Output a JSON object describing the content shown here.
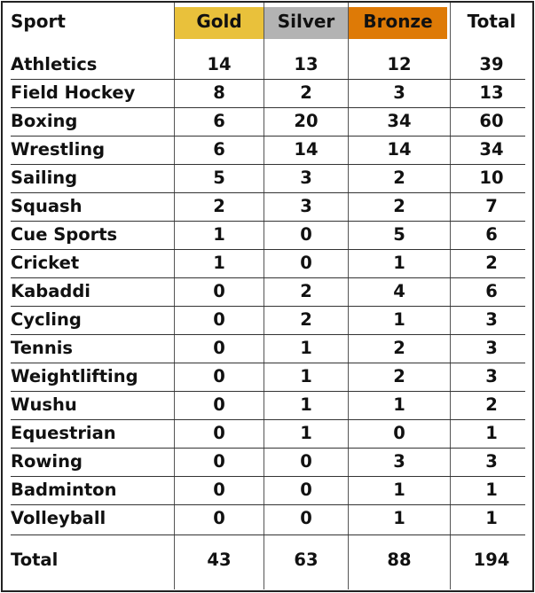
{
  "colors": {
    "gold": "#e9c13b",
    "silver": "#b3b3b3",
    "bronze": "#de7a06"
  },
  "header": {
    "sport": "Sport",
    "gold": "Gold",
    "silver": "Silver",
    "bronze": "Bronze",
    "total": "Total"
  },
  "rows": [
    {
      "sport": "Athletics",
      "gold": "14",
      "silver": "13",
      "bronze": "12",
      "total": "39"
    },
    {
      "sport": "Field Hockey",
      "gold": "8",
      "silver": "2",
      "bronze": "3",
      "total": "13"
    },
    {
      "sport": "Boxing",
      "gold": "6",
      "silver": "20",
      "bronze": "34",
      "total": "60"
    },
    {
      "sport": "Wrestling",
      "gold": "6",
      "silver": "14",
      "bronze": "14",
      "total": "34"
    },
    {
      "sport": "Sailing",
      "gold": "5",
      "silver": "3",
      "bronze": "2",
      "total": "10"
    },
    {
      "sport": "Squash",
      "gold": "2",
      "silver": "3",
      "bronze": "2",
      "total": "7"
    },
    {
      "sport": "Cue Sports",
      "gold": "1",
      "silver": "0",
      "bronze": "5",
      "total": "6"
    },
    {
      "sport": "Cricket",
      "gold": "1",
      "silver": "0",
      "bronze": "1",
      "total": "2"
    },
    {
      "sport": "Kabaddi",
      "gold": "0",
      "silver": "2",
      "bronze": "4",
      "total": "6"
    },
    {
      "sport": "Cycling",
      "gold": "0",
      "silver": "2",
      "bronze": "1",
      "total": "3"
    },
    {
      "sport": "Tennis",
      "gold": "0",
      "silver": "1",
      "bronze": "2",
      "total": "3"
    },
    {
      "sport": "Weightlifting",
      "gold": "0",
      "silver": "1",
      "bronze": "2",
      "total": "3"
    },
    {
      "sport": "Wushu",
      "gold": "0",
      "silver": "1",
      "bronze": "1",
      "total": "2"
    },
    {
      "sport": "Equestrian",
      "gold": "0",
      "silver": "1",
      "bronze": "0",
      "total": "1"
    },
    {
      "sport": "Rowing",
      "gold": "0",
      "silver": "0",
      "bronze": "3",
      "total": "3"
    },
    {
      "sport": "Badminton",
      "gold": "0",
      "silver": "0",
      "bronze": "1",
      "total": "1"
    },
    {
      "sport": "Volleyball",
      "gold": "0",
      "silver": "0",
      "bronze": "1",
      "total": "1"
    }
  ],
  "totals": {
    "label": "Total",
    "gold": "43",
    "silver": "63",
    "bronze": "88",
    "total": "194"
  }
}
